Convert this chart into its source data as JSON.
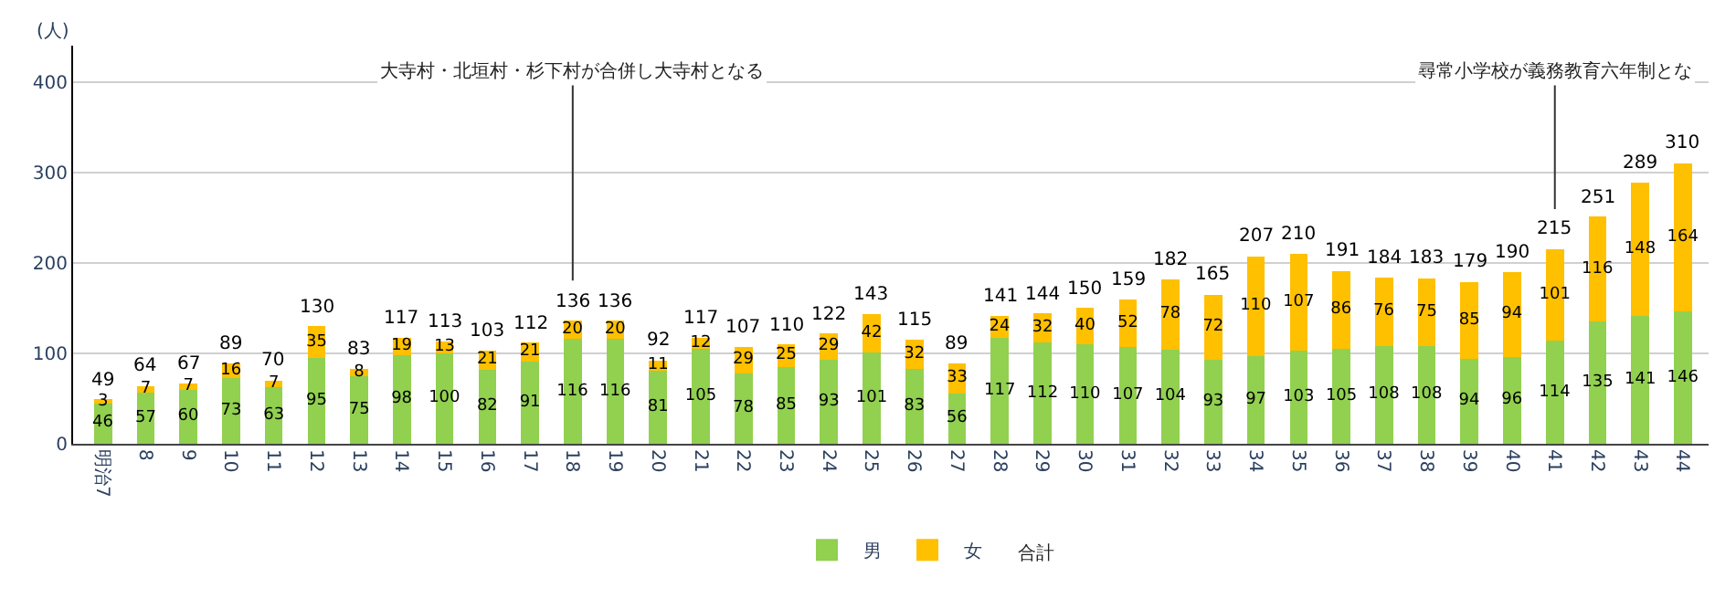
{
  "chart_data": {
    "type": "bar",
    "stacked": true,
    "ylabel": "(人)",
    "categories": [
      "明治7",
      "8",
      "9",
      "10",
      "11",
      "12",
      "13",
      "14",
      "15",
      "16",
      "17",
      "18",
      "19",
      "20",
      "21",
      "22",
      "23",
      "24",
      "25",
      "26",
      "27",
      "28",
      "29",
      "30",
      "31",
      "32",
      "33",
      "34",
      "35",
      "36",
      "37",
      "38",
      "39",
      "40",
      "41",
      "42",
      "43",
      "44"
    ],
    "series": [
      {
        "name": "男",
        "color": "#92d050",
        "values": [
          46,
          57,
          60,
          73,
          63,
          95,
          75,
          98,
          100,
          82,
          91,
          116,
          116,
          81,
          105,
          78,
          85,
          93,
          101,
          83,
          56,
          117,
          112,
          110,
          107,
          104,
          93,
          97,
          103,
          105,
          108,
          108,
          94,
          96,
          114,
          135,
          141,
          146
        ]
      },
      {
        "name": "女",
        "color": "#ffc000",
        "values": [
          3,
          7,
          7,
          16,
          7,
          35,
          8,
          19,
          13,
          21,
          21,
          20,
          20,
          11,
          12,
          29,
          25,
          29,
          42,
          32,
          33,
          24,
          32,
          40,
          52,
          78,
          72,
          110,
          107,
          86,
          76,
          75,
          85,
          94,
          101,
          116,
          148,
          164
        ]
      }
    ],
    "totals": [
      "49",
      "64",
      "67",
      "89",
      "70",
      "130",
      "83",
      "117",
      "113",
      "103",
      "112",
      "136",
      "136",
      "92",
      "117",
      "107",
      "110",
      "122",
      "143",
      "115",
      "89",
      "141",
      "144",
      "150",
      "159",
      "182",
      "165",
      "207",
      "210",
      "191",
      "184",
      "183",
      "179",
      "190",
      "215",
      "251",
      "289",
      "310"
    ],
    "legend_title": "合計",
    "ylim": [
      0,
      440
    ],
    "yticks": [
      0,
      100,
      200,
      300,
      400
    ],
    "grid": "y",
    "legend": "bottom",
    "data_labels": true,
    "annotations": [
      {
        "text": "大寺村・北垣村・杉下村が合併し大寺村となる",
        "x": "18",
        "y": 136
      },
      {
        "text": "尋常小学校が義務教育六年制とな",
        "x": "41",
        "y": 215
      }
    ]
  }
}
